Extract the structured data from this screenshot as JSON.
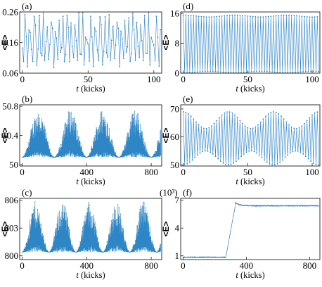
{
  "colors": {
    "series": "#2f86c6",
    "axis": "#000000",
    "background": "#ffffff"
  },
  "chart_data": [
    {
      "panel": "(a)",
      "type": "line",
      "xlabel": "t",
      "xunit": " (kicks)",
      "ylabel": "<E>",
      "xlim": [
        -2,
        106
      ],
      "ylim": [
        0.06,
        0.26
      ],
      "xticks": [
        0,
        50,
        100
      ],
      "xticklabels": [
        "0",
        "50",
        "100"
      ],
      "yticks": [
        0.06,
        0.16,
        0.26
      ],
      "yticklabels": [
        "0.06",
        "0.16",
        "0.26"
      ],
      "series": [
        {
          "x_start": 0,
          "x_step": 1,
          "values": [
            0.142,
            0.098,
            0.251,
            0.179,
            0.081,
            0.201,
            0.193,
            0.138,
            0.098,
            0.246,
            0.216,
            0.085,
            0.139,
            0.249,
            0.125,
            0.117,
            0.256,
            0.101,
            0.164,
            0.211,
            0.105,
            0.153,
            0.227,
            0.206,
            0.078,
            0.196,
            0.174,
            0.105,
            0.233,
            0.128,
            0.144,
            0.246,
            0.097,
            0.121,
            0.249,
            0.209,
            0.097,
            0.224,
            0.148,
            0.111,
            0.217,
            0.166,
            0.101,
            0.257,
            0.122,
            0.121,
            0.257,
            0.087,
            0.178,
            0.169,
            0.155,
            0.099,
            0.246,
            0.179,
            0.082,
            0.208,
            0.197,
            0.136,
            0.101,
            0.244,
            0.218,
            0.088,
            0.131,
            0.244,
            0.127,
            0.112,
            0.251,
            0.102,
            0.167,
            0.213,
            0.108,
            0.152,
            0.226,
            0.206,
            0.081,
            0.197,
            0.172,
            0.108,
            0.233,
            0.129,
            0.146,
            0.241,
            0.098,
            0.125,
            0.256,
            0.202,
            0.101,
            0.226,
            0.148,
            0.112,
            0.217,
            0.166,
            0.101,
            0.249,
            0.125,
            0.125,
            0.257,
            0.087,
            0.177,
            0.164,
            0.152,
            0.101,
            0.246,
            0.177,
            0.083,
            0.203
          ]
        }
      ]
    },
    {
      "panel": "(b)",
      "type": "line",
      "xlabel": "t",
      "xunit": " (kicks)",
      "ylabel": "<E>",
      "xlim": [
        -15,
        865
      ],
      "ylim": [
        49.98,
        50.82
      ],
      "xticks": [
        0,
        400,
        800
      ],
      "xticklabels": [
        "0",
        "400",
        "800"
      ],
      "yticks": [
        50,
        50.4,
        50.8
      ],
      "yticklabels": [
        "50",
        "50.4",
        "50.8"
      ],
      "model": {
        "mode": "envelope",
        "base": 50.1,
        "spread": 0.66,
        "period": 200,
        "phase_at_max": 100,
        "jitter": 0.55,
        "n": 860
      },
      "series": [
        {
          "x_start": 0,
          "x_step": 1
        }
      ]
    },
    {
      "panel": "(c)",
      "type": "line",
      "xlabel": "t",
      "xunit": " (kicks)",
      "ylabel": "<E>",
      "xlim": [
        -15,
        865
      ],
      "ylim": [
        799.6,
        806.2
      ],
      "xticks": [
        0,
        400,
        800
      ],
      "xticklabels": [
        "0",
        "400",
        "800"
      ],
      "yticks": [
        800,
        803,
        806
      ],
      "yticklabels": [
        "800",
        "803",
        "806"
      ],
      "model": {
        "mode": "envelope",
        "base": 800.4,
        "spread": 5.5,
        "period": 167,
        "phase_at_max": 83,
        "jitter": 0.55,
        "n": 860
      },
      "series": [
        {
          "x_start": 0,
          "x_step": 1
        }
      ]
    },
    {
      "panel": "(d)",
      "type": "line",
      "xlabel": "t",
      "xunit": " (kicks)",
      "ylabel": "<E>",
      "xlim": [
        -2,
        106
      ],
      "ylim": [
        0,
        16.4
      ],
      "xticks": [
        0,
        50,
        100
      ],
      "xticklabels": [
        "0",
        "50",
        "100"
      ],
      "yticks": [
        0,
        8,
        16
      ],
      "yticklabels": [
        "0",
        "8",
        "16"
      ],
      "model": {
        "mode": "alternating",
        "high": 15.3,
        "high_mod": 0.25,
        "low": 0.3,
        "low_mod": 0.2,
        "mod_period": 40,
        "n": 106
      },
      "series": [
        {
          "x_start": 0,
          "x_step": 1
        }
      ]
    },
    {
      "panel": "(e)",
      "type": "line",
      "xlabel": "t",
      "xunit": " (kicks)",
      "ylabel": "<E>",
      "xlim": [
        -2,
        106
      ],
      "ylim": [
        49.6,
        71.5
      ],
      "xticks": [
        0,
        50,
        100
      ],
      "xticklabels": [
        "0",
        "50",
        "100"
      ],
      "yticks": [
        50,
        60,
        70
      ],
      "yticklabels": [
        "50",
        "60",
        "70"
      ],
      "model": {
        "mode": "alternating",
        "high": 66.0,
        "high_mod": 3.0,
        "low": 52.5,
        "low_mod": 2.5,
        "mod_period": 35,
        "n": 106
      },
      "series": [
        {
          "x_start": 0,
          "x_step": 1
        }
      ]
    },
    {
      "panel": "(f)",
      "type": "line",
      "xlabel": "t",
      "xunit": " (kicks)",
      "ylabel": "<E>",
      "yscale_note": "(10³)",
      "xlim": [
        -15,
        865
      ],
      "ylim": [
        0.6,
        7.2
      ],
      "xticks": [
        0,
        400,
        800
      ],
      "xticklabels": [
        "0",
        "400",
        "800"
      ],
      "yticks": [
        1,
        4,
        7
      ],
      "yticklabels": [
        "1",
        "4",
        "7"
      ],
      "model": {
        "mode": "step",
        "low": 0.85,
        "high": 6.4,
        "rise_start": 270,
        "rise_end": 330,
        "overshoot": 0.35,
        "n": 860
      },
      "series": [
        {
          "x_start": 0,
          "x_step": 1
        }
      ]
    }
  ]
}
